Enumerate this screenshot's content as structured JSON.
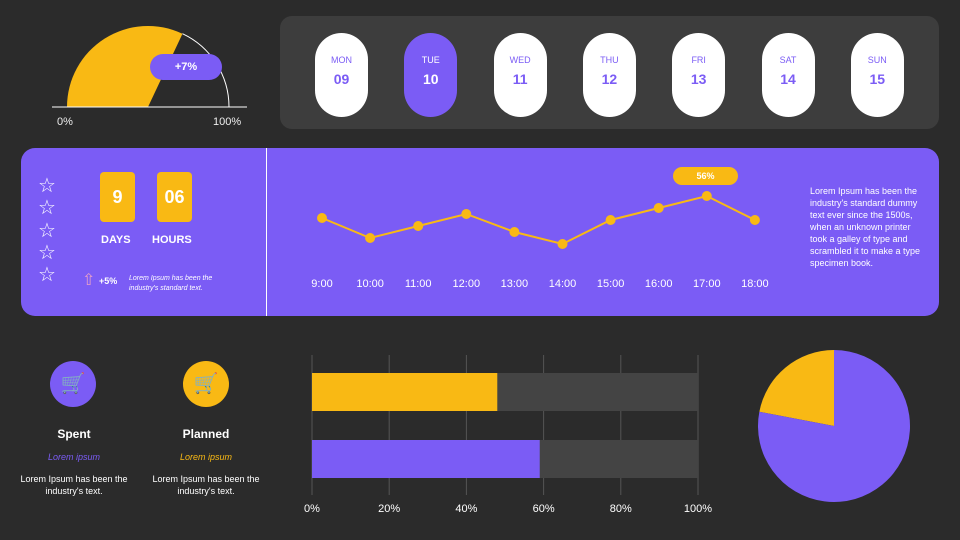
{
  "colors": {
    "purple": "#7b5cf5",
    "yellow": "#f9b914",
    "bg": "#2b2b2b",
    "panel": "#3d3d3d"
  },
  "gauge": {
    "value_percent": 64,
    "badge": "+7%",
    "min_label": "0%",
    "max_label": "100%"
  },
  "days": [
    {
      "d": "MON",
      "n": "09"
    },
    {
      "d": "TUE",
      "n": "10",
      "selected": true
    },
    {
      "d": "WED",
      "n": "11"
    },
    {
      "d": "THU",
      "n": "12"
    },
    {
      "d": "FRI",
      "n": "13"
    },
    {
      "d": "SAT",
      "n": "14"
    },
    {
      "d": "SUN",
      "n": "15"
    }
  ],
  "countdown": {
    "days": "9",
    "days_label": "DAYS",
    "hours": "06",
    "hours_label": "HOURS",
    "change": "+5%",
    "note": "Lorem Ipsum has been the industry's standard text.",
    "stars": 5,
    "arrow_icon": "arrow-up-icon"
  },
  "chart_data": [
    {
      "type": "line",
      "categories": [
        "9:00",
        "10:00",
        "11:00",
        "12:00",
        "13:00",
        "14:00",
        "15:00",
        "16:00",
        "17:00",
        "18:00"
      ],
      "values": [
        45,
        35,
        41,
        47,
        38,
        32,
        44,
        50,
        56,
        44
      ],
      "annotation": "56%"
    },
    {
      "type": "bar",
      "orientation": "horizontal",
      "series": [
        {
          "color": "#f9b914",
          "value": 48
        },
        {
          "color": "#7b5cf5",
          "value": 59
        }
      ],
      "xticks": [
        "0%",
        "20%",
        "40%",
        "60%",
        "80%",
        "100%"
      ],
      "xlim": [
        0,
        100
      ],
      "grid": true
    },
    {
      "type": "pie",
      "slices": [
        {
          "color": "#f9b914",
          "value": 22
        },
        {
          "color": "#7b5cf5",
          "value": 78
        }
      ]
    }
  ],
  "side_text": "Lorem Ipsum has been the industry's standard dummy text ever since the 1500s, when an unknown printer took a galley of type and scrambled it to make a type specimen book.",
  "cards": [
    {
      "title": "Spent",
      "sub": "Lorem ipsum",
      "text": "Lorem Ipsum has been the industry's text.",
      "icon": "cart-up-icon"
    },
    {
      "title": "Planned",
      "sub": "Lorem ipsum",
      "text": "Lorem Ipsum has been the industry's text.",
      "icon": "cart-down-icon"
    }
  ]
}
